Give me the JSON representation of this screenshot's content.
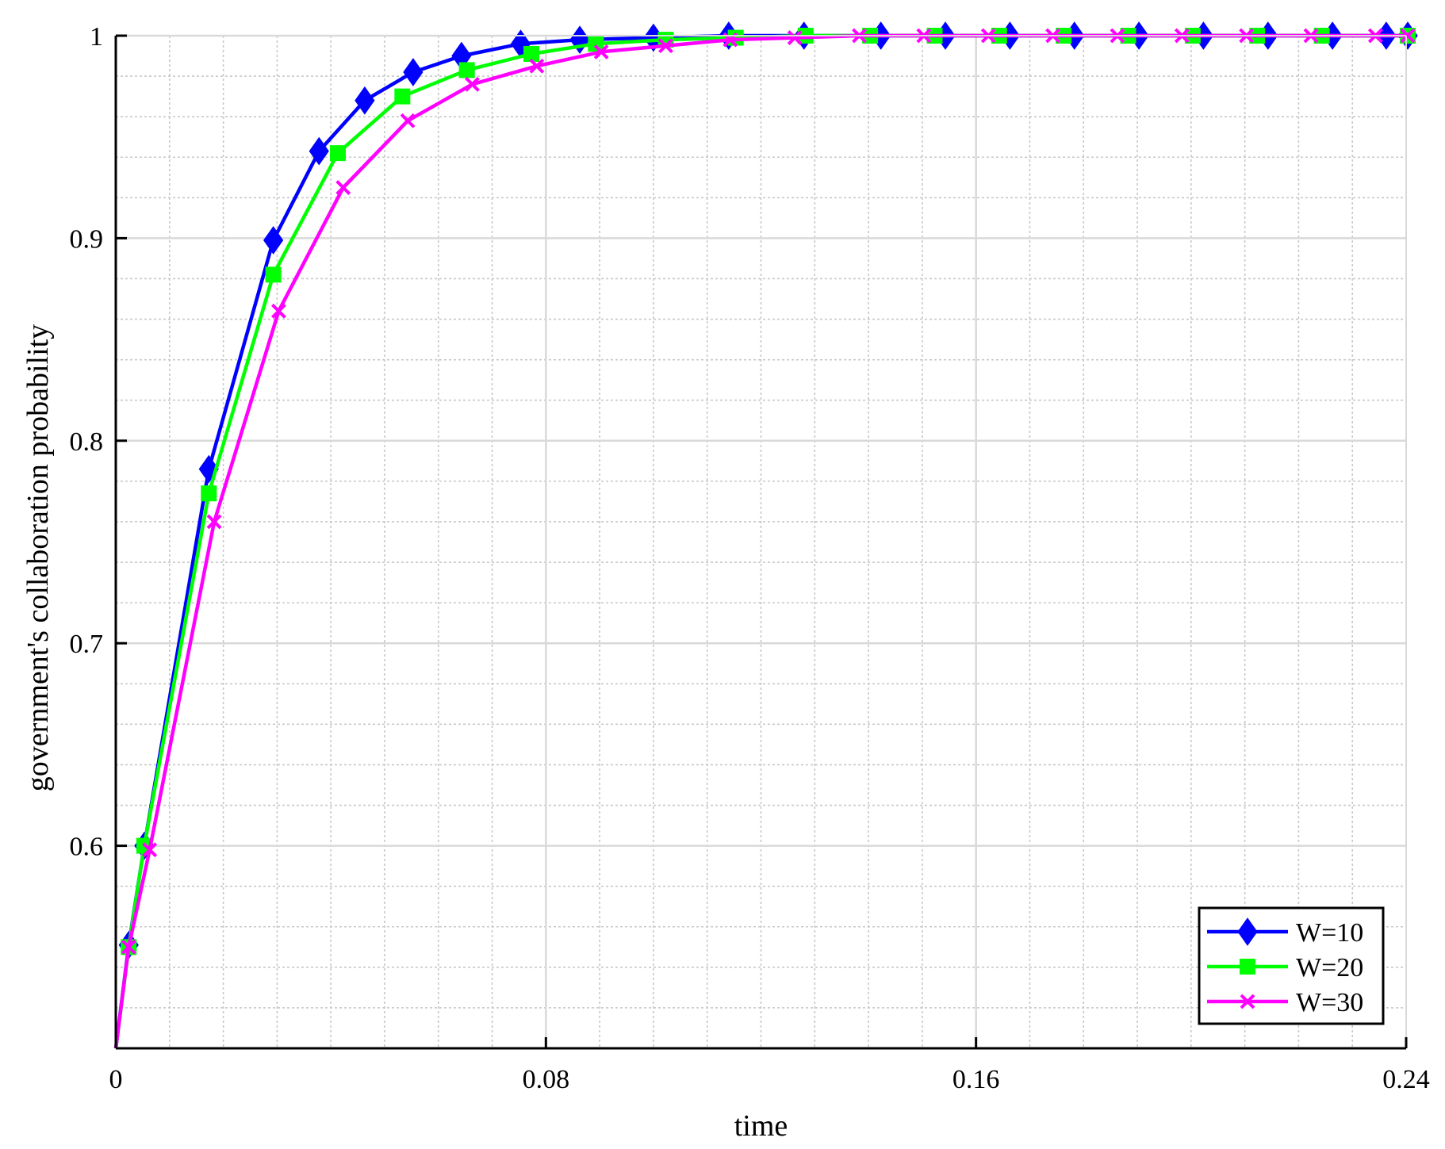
{
  "chart_data": {
    "type": "line",
    "title": "",
    "xlabel": "time",
    "ylabel": "government's collaboration probability",
    "xlim": [
      0,
      0.24
    ],
    "ylim": [
      0.5,
      1.0
    ],
    "x_ticks": [
      0,
      0.08,
      0.16,
      0.24
    ],
    "x_tick_labels": [
      "0",
      "0.08",
      "0.16",
      "0.24"
    ],
    "y_ticks": [
      0.6,
      0.7,
      0.8,
      0.9,
      1.0
    ],
    "y_tick_labels": [
      "0.6",
      "0.7",
      "0.8",
      "0.9",
      "1"
    ],
    "grid": true,
    "minor_grid": true,
    "legend_position": "bottom-right",
    "series": [
      {
        "name": "W=10",
        "color": "#0000ff",
        "marker": "diamond",
        "x": [
          0,
          0.0024,
          0.0053,
          0.0173,
          0.0293,
          0.0378,
          0.0463,
          0.0553,
          0.0643,
          0.0753,
          0.0863,
          0.1,
          0.114,
          0.128,
          0.1423,
          0.1543,
          0.1663,
          0.1783,
          0.1903,
          0.2023,
          0.2143,
          0.2263,
          0.2363,
          0.2403
        ],
        "y": [
          0.5,
          0.551,
          0.6,
          0.786,
          0.899,
          0.943,
          0.968,
          0.982,
          0.99,
          0.996,
          0.998,
          0.999,
          1.0,
          1.0,
          1.0,
          1.0,
          1.0,
          1.0,
          1.0,
          1.0,
          1.0,
          1.0,
          1.0,
          1.0
        ]
      },
      {
        "name": "W=20",
        "color": "#00ff00",
        "marker": "square",
        "x": [
          0,
          0.0024,
          0.0053,
          0.0173,
          0.0293,
          0.0413,
          0.0533,
          0.0653,
          0.0773,
          0.0893,
          0.1023,
          0.1153,
          0.1283,
          0.1403,
          0.1523,
          0.1643,
          0.1763,
          0.1883,
          0.2003,
          0.2123,
          0.2243,
          0.2403
        ],
        "y": [
          0.5,
          0.55,
          0.6,
          0.774,
          0.882,
          0.942,
          0.97,
          0.983,
          0.991,
          0.996,
          0.998,
          0.999,
          1.0,
          1.0,
          1.0,
          1.0,
          1.0,
          1.0,
          1.0,
          1.0,
          1.0,
          1.0
        ]
      },
      {
        "name": "W=30",
        "color": "#ff00ff",
        "marker": "x",
        "x": [
          0,
          0.0024,
          0.0063,
          0.0183,
          0.0303,
          0.0423,
          0.0543,
          0.0663,
          0.0783,
          0.0903,
          0.1023,
          0.1143,
          0.1263,
          0.1383,
          0.1503,
          0.1623,
          0.1743,
          0.1863,
          0.1983,
          0.2103,
          0.2223,
          0.2343,
          0.2403
        ],
        "y": [
          0.5,
          0.55,
          0.598,
          0.76,
          0.864,
          0.925,
          0.958,
          0.976,
          0.985,
          0.992,
          0.995,
          0.998,
          0.999,
          1.0,
          1.0,
          1.0,
          1.0,
          1.0,
          1.0,
          1.0,
          1.0,
          1.0,
          1.0
        ]
      }
    ]
  }
}
